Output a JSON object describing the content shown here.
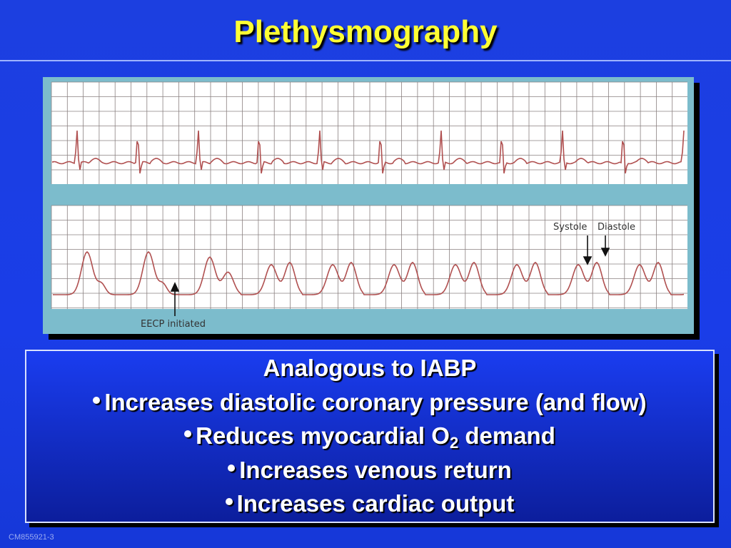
{
  "title": "Plethysmography",
  "figure": {
    "systole": "Systole",
    "diastole": "Diastole",
    "eecp": "EECP initiated"
  },
  "body": {
    "heading": "Analogous to IABP",
    "bullets": [
      {
        "text": "Increases diastolic coronary pressure (and flow)"
      },
      {
        "text": "Reduces myocardial O",
        "sub": "2",
        "after": " demand"
      },
      {
        "text": "Increases venous return"
      },
      {
        "text": "Increases cardiac output"
      }
    ]
  },
  "footer": "CM855921-3"
}
